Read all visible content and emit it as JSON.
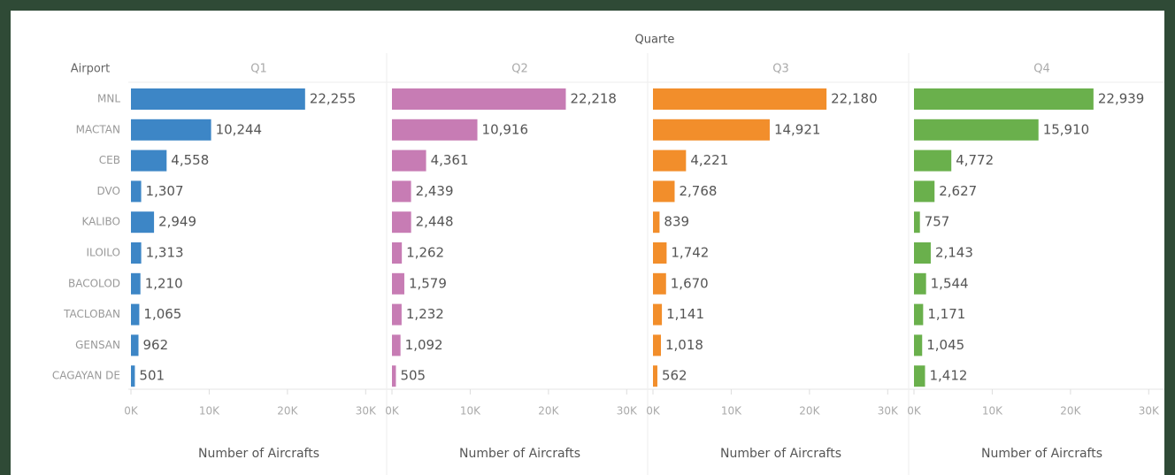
{
  "chart_data": {
    "type": "bar",
    "orientation": "horizontal",
    "header": "Quarte",
    "row_header": "Airport",
    "categories": [
      "MNL",
      "MACTAN",
      "CEB",
      "DVO",
      "KALIBO",
      "ILOILO",
      "BACOLOD",
      "TACLOBAN",
      "GENSAN",
      "CAGAYAN DE"
    ],
    "series": [
      {
        "name": "Q1",
        "color": "#3d86c6",
        "values": [
          22255,
          10244,
          4558,
          1307,
          2949,
          1313,
          1210,
          1065,
          962,
          501
        ],
        "value_labels": [
          "22,255",
          "10,244",
          "4,558",
          "1,307",
          "2,949",
          "1,313",
          "1,210",
          "1,065",
          "962",
          "501"
        ]
      },
      {
        "name": "Q2",
        "color": "#c77cb4",
        "values": [
          22218,
          10916,
          4361,
          2439,
          2448,
          1262,
          1579,
          1232,
          1092,
          505
        ],
        "value_labels": [
          "22,218",
          "10,916",
          "4,361",
          "2,439",
          "2,448",
          "1,262",
          "1,579",
          "1,232",
          "1,092",
          "505"
        ]
      },
      {
        "name": "Q3",
        "color": "#f28e2b",
        "values": [
          22180,
          14921,
          4221,
          2768,
          839,
          1742,
          1670,
          1141,
          1018,
          562
        ],
        "value_labels": [
          "22,180",
          "14,921",
          "4,221",
          "2,768",
          "839",
          "1,742",
          "1,670",
          "1,141",
          "1,018",
          "562"
        ]
      },
      {
        "name": "Q4",
        "color": "#6ab04c",
        "values": [
          22939,
          15910,
          4772,
          2627,
          757,
          2143,
          1544,
          1171,
          1045,
          1412
        ],
        "value_labels": [
          "22,939",
          "15,910",
          "4,772",
          "2,627",
          "757",
          "2,143",
          "1,544",
          "1,171",
          "1,045",
          "1,412"
        ]
      }
    ],
    "xlim": [
      0,
      32000
    ],
    "xticks": [
      {
        "value": 0,
        "label": "0K"
      },
      {
        "value": 10000,
        "label": "10K"
      },
      {
        "value": 20000,
        "label": "20K"
      },
      {
        "value": 30000,
        "label": "30K"
      }
    ],
    "xlabel": "Number of Aircrafts"
  }
}
